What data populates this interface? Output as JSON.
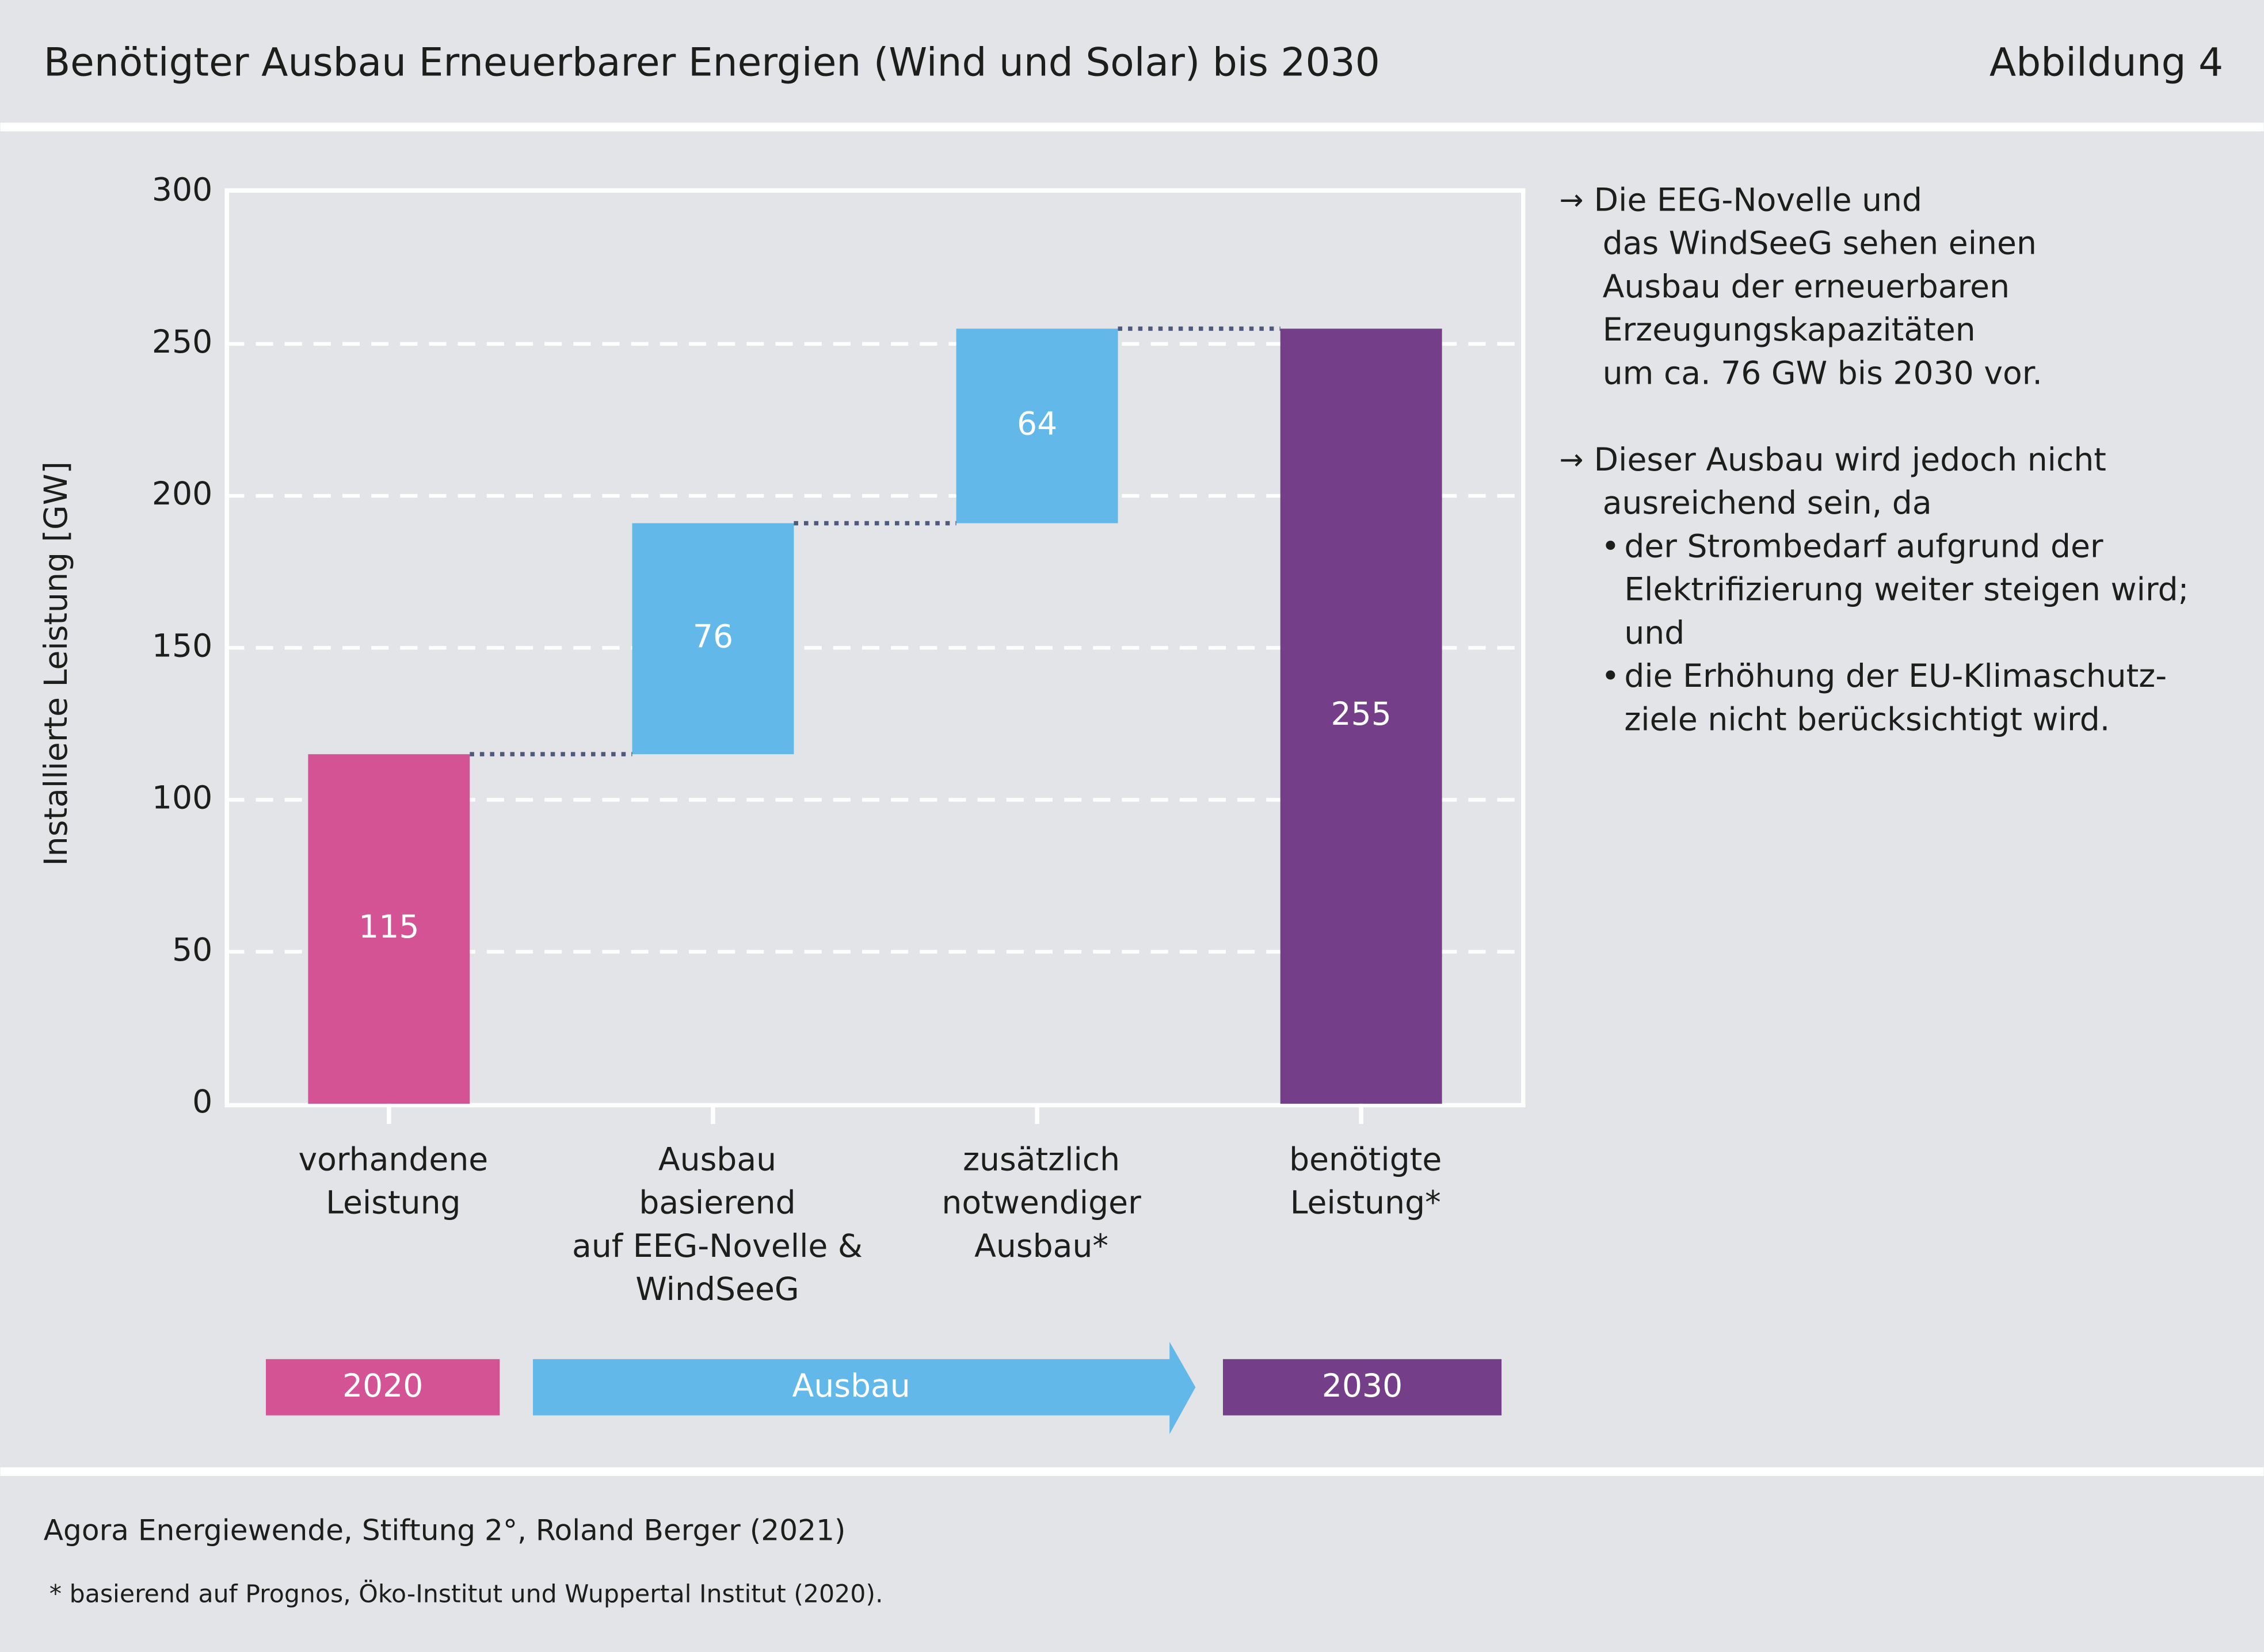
{
  "header": {
    "title": "Benötigter Ausbau Erneuerbarer Energien (Wind und Solar) bis 2030",
    "figure": "Abbildung 4"
  },
  "chart_data": {
    "type": "waterfall",
    "y_label": "Installierte Leistung [GW]",
    "categories": [
      [
        "vorhandene",
        "Leistung"
      ],
      [
        "Ausbau",
        "basierend",
        "auf EEG-Novelle &",
        "WindSeeG"
      ],
      [
        "zusätzlich",
        "notwendiger",
        "Ausbau*"
      ],
      [
        "benötigte",
        "Leistung*"
      ]
    ],
    "values": [
      115,
      76,
      64,
      255
    ],
    "bar_kinds": [
      "total",
      "delta",
      "delta",
      "total"
    ],
    "colors": [
      "#d35394",
      "#62b8e8",
      "#62b8e8",
      "#743f88"
    ],
    "ylim": [
      0,
      300
    ],
    "yticks": [
      0,
      50,
      100,
      150,
      200,
      250,
      300
    ],
    "grid": true,
    "phases": [
      {
        "label": "2020",
        "color": "#d35394"
      },
      {
        "label": "Ausbau",
        "color": "#62b8e8"
      },
      {
        "label": "2030",
        "color": "#743f88"
      }
    ]
  },
  "notes": [
    {
      "arrow": "→",
      "lines": [
        "Die EEG-Novelle und",
        "das WindSeeG sehen einen",
        "Ausbau der erneuerbaren",
        "Erzeugungskapazitäten",
        "um ca. 76 GW bis 2030 vor."
      ],
      "bullets": []
    },
    {
      "arrow": "→",
      "lines": [
        "Dieser Ausbau wird jedoch nicht",
        "ausreichend sein, da"
      ],
      "bullets": [
        {
          "symbol": "•",
          "lines": [
            "der Strombedarf aufgrund der",
            "Elektrifizierung weiter steigen wird;",
            "und"
          ]
        },
        {
          "symbol": "•",
          "lines": [
            "die Erhöhung der EU-Klimaschutz-",
            "ziele nicht berücksichtigt wird."
          ]
        }
      ]
    }
  ],
  "footer": {
    "source": "Agora Energiewende, Stiftung 2°, Roland Berger (2021)",
    "footnote": "* basierend auf Prognos, Öko-Institut und Wuppertal Institut (2020)."
  }
}
